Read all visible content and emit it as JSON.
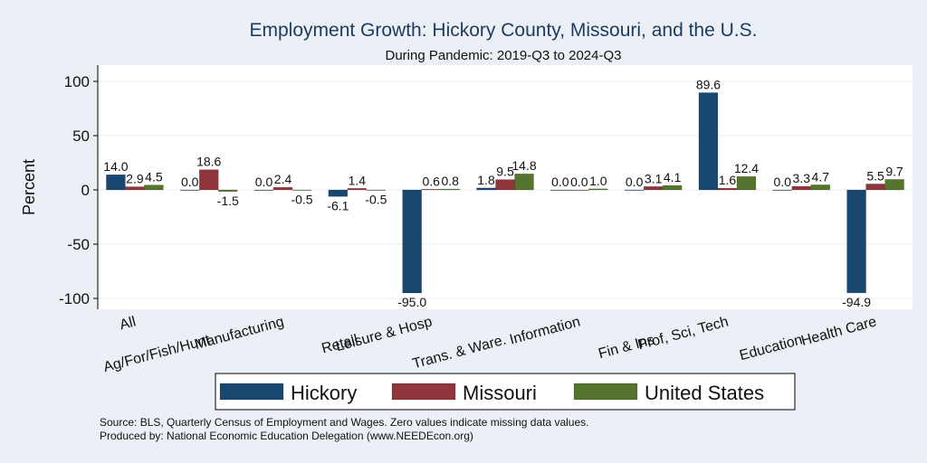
{
  "chart_data": {
    "type": "bar",
    "title": "Employment Growth: Hickory County, Missouri, and the U.S.",
    "subtitle": "During Pandemic: 2019-Q3 to 2024-Q3",
    "ylabel": "Percent",
    "ylim": [
      -110,
      115
    ],
    "yticks": [
      -100,
      -50,
      0,
      50,
      100
    ],
    "grid": true,
    "legend_position": "bottom",
    "categories": [
      "All",
      "Ag/For/Fish/Hunt",
      "Manufacturing",
      "Retail",
      "Leisure & Hosp",
      "Trans. & Ware.",
      "Information",
      "Fin & Ins",
      "Prof, Sci, Tech",
      "Education",
      "Health Care"
    ],
    "series": [
      {
        "name": "Hickory",
        "color": "#1a476f",
        "values": [
          14.0,
          0.0,
          0.0,
          -6.1,
          -95.0,
          1.8,
          0.0,
          0.0,
          89.6,
          0.0,
          -94.9
        ],
        "labels": [
          "14.0",
          "0.0",
          "0.0",
          "-6.1",
          "-95.0",
          "1.8",
          "0.0",
          "0.0",
          "89.6",
          "0.0",
          "-94.9"
        ]
      },
      {
        "name": "Missouri",
        "color": "#90353b",
        "values": [
          2.9,
          18.6,
          2.4,
          1.4,
          0.6,
          9.5,
          0.0,
          3.1,
          1.6,
          3.3,
          5.5
        ],
        "labels": [
          "2.9",
          "18.6",
          "2.4",
          "1.4",
          "0.6",
          "9.5",
          "0.0",
          "3.1",
          "1.6",
          "3.3",
          "5.5"
        ]
      },
      {
        "name": "United States",
        "color": "#55752f",
        "values": [
          4.5,
          -1.5,
          -0.5,
          -0.5,
          0.8,
          14.8,
          1.0,
          4.1,
          12.4,
          4.7,
          9.7
        ],
        "labels": [
          "4.5",
          "-1.5",
          "-0.5",
          "-0.5",
          "0.8",
          "14.8",
          "1.0",
          "4.1",
          "12.4",
          "4.7",
          "9.7"
        ]
      }
    ]
  },
  "notes": {
    "source": "Source: BLS, Quarterly Census of Employment and Wages. Zero values indicate missing data values.",
    "produced": "Produced by: National Economic Education Delegation (www.NEEDEcon.org)"
  }
}
